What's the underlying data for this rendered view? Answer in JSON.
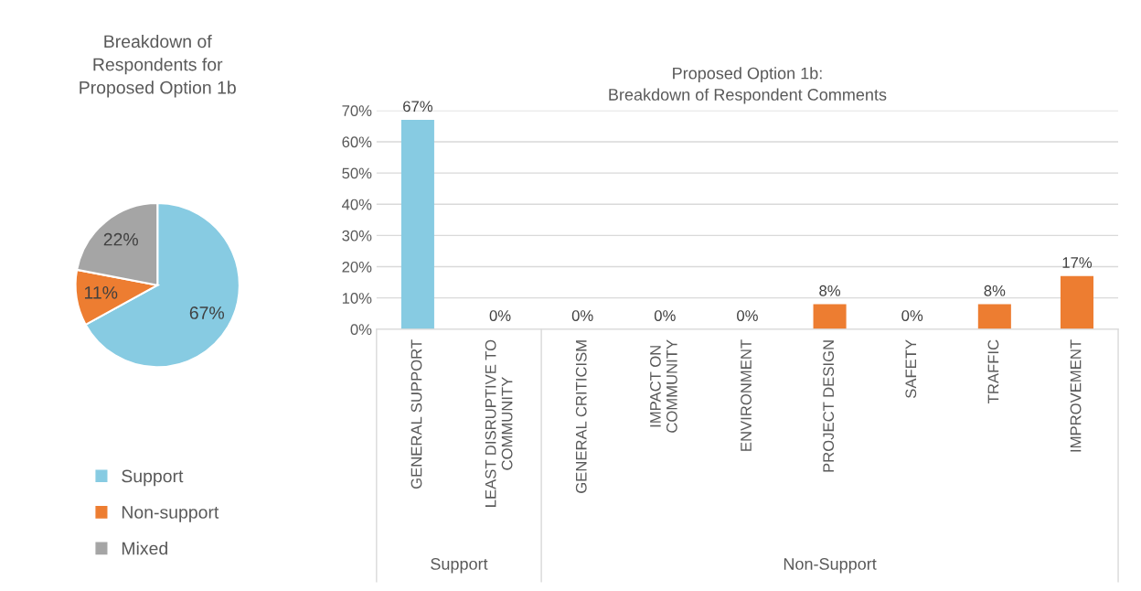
{
  "chart_data": [
    {
      "type": "pie",
      "title": "Breakdown of\nRespondents for\nProposed Option 1b",
      "categories": [
        "Support",
        "Non-support",
        "Mixed"
      ],
      "values": [
        67,
        11,
        22
      ],
      "colors": [
        "#87cbe2",
        "#ed7d31",
        "#a5a5a5"
      ],
      "value_labels": [
        "67%",
        "11%",
        "22%"
      ],
      "legend": "bottom"
    },
    {
      "type": "bar",
      "title": "Proposed Option 1b:\nBreakdown of Respondent Comments",
      "categories": [
        "GENERAL SUPPORT",
        "LEAST DISRUPTIVE TO\nCOMMUNITY",
        "GENERAL CRITICISM",
        "IMPACT ON\nCOMMUNITY",
        "ENVIRONMENT",
        "PROJECT DESIGN",
        "SAFETY",
        "TRAFFIC",
        "IMPROVEMENT"
      ],
      "values": [
        67,
        0,
        0,
        0,
        0,
        8,
        0,
        8,
        17
      ],
      "colors": [
        "#87cbe2",
        "#87cbe2",
        "#ed7d31",
        "#ed7d31",
        "#ed7d31",
        "#ed7d31",
        "#ed7d31",
        "#ed7d31",
        "#ed7d31"
      ],
      "value_labels": [
        "67%",
        "0%",
        "0%",
        "0%",
        "0%",
        "8%",
        "0%",
        "8%",
        "17%"
      ],
      "ylim": [
        0,
        70
      ],
      "yticks": [
        {
          "value": 0,
          "label": "0%"
        },
        {
          "value": 10,
          "label": "10%"
        },
        {
          "value": 20,
          "label": "20%"
        },
        {
          "value": 30,
          "label": "30%"
        },
        {
          "value": 40,
          "label": "40%"
        },
        {
          "value": 50,
          "label": "50%"
        },
        {
          "value": 60,
          "label": "60%"
        },
        {
          "value": 70,
          "label": "70%"
        }
      ],
      "grid": "y",
      "annotations": [
        "Support",
        "Non-Support"
      ]
    }
  ]
}
